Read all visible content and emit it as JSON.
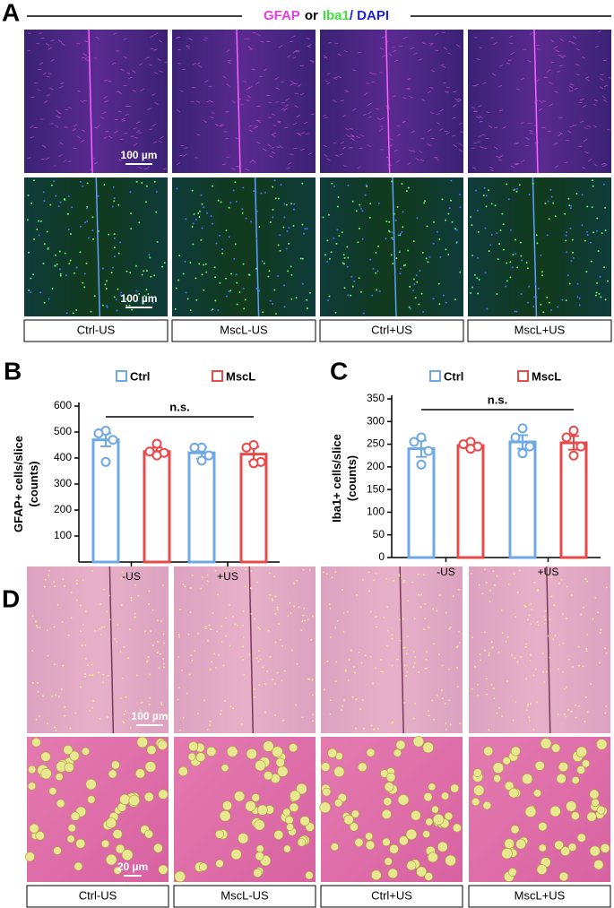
{
  "panel_labels": [
    "A",
    "B",
    "C",
    "D"
  ],
  "panel_a": {
    "title_parts": [
      "GFAP",
      "or",
      "Iba1",
      "/ DAPI"
    ],
    "scale_bars": [
      "100 µm",
      "100 µm"
    ],
    "groups": [
      "Ctrl-US",
      "MscL-US",
      "Ctrl+US",
      "MscL+US"
    ]
  },
  "chart_data": [
    {
      "type": "bar",
      "ylabel": [
        "GFAP+ cells/slice",
        "(counts)"
      ],
      "categories": [
        "-US",
        "+US"
      ],
      "ylim": [
        0,
        600
      ],
      "yticks": [
        100,
        200,
        300,
        400,
        500,
        600
      ],
      "annotation": "n.s.",
      "series": [
        {
          "name": "Ctrl",
          "color": "#6fa8e6",
          "values": [
            470,
            420
          ],
          "errors": [
            25,
            22
          ],
          "points": [
            [
              505,
              495,
              470,
              385
            ],
            [
              440,
              440,
              410,
              390
            ]
          ]
        },
        {
          "name": "MscL",
          "color": "#e84a4a",
          "values": [
            425,
            415
          ],
          "errors": [
            15,
            28
          ],
          "points": [
            [
              455,
              425,
              420,
              410
            ],
            [
              450,
              440,
              385,
              380
            ]
          ]
        }
      ]
    },
    {
      "type": "bar",
      "ylabel": [
        "Iba1+ cells/slice",
        "(counts)"
      ],
      "categories": [
        "-US",
        "+US"
      ],
      "ylim": [
        0,
        350
      ],
      "yticks": [
        0,
        50,
        100,
        150,
        200,
        250,
        300,
        350
      ],
      "annotation": "n.s.",
      "series": [
        {
          "name": "Ctrl",
          "color": "#6fa8e6",
          "values": [
            240,
            255
          ],
          "errors": [
            18,
            15
          ],
          "points": [
            [
              265,
              255,
              235,
              205
            ],
            [
              285,
              265,
              245,
              230
            ]
          ]
        },
        {
          "name": "MscL",
          "color": "#e84a4a",
          "values": [
            247,
            253
          ],
          "errors": [
            6,
            15
          ],
          "points": [
            [
              255,
              250,
              245,
              240
            ],
            [
              280,
              265,
              245,
              225
            ]
          ]
        }
      ]
    }
  ],
  "panel_d": {
    "scale_bars": [
      "100 µm",
      "20 µm"
    ],
    "groups": [
      "Ctrl-US",
      "MscL-US",
      "Ctrl+US",
      "MscL+US"
    ]
  }
}
